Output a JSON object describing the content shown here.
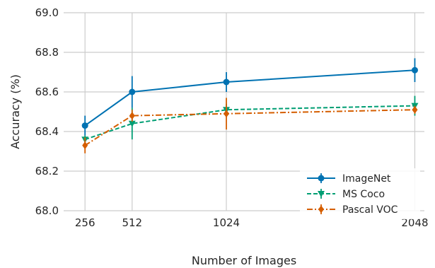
{
  "chart_data": {
    "type": "line",
    "title": "",
    "xlabel": "Number of Images",
    "ylabel": "Accuracy (%)",
    "x": [
      256,
      512,
      1024,
      2048
    ],
    "xticks": [
      "256",
      "512",
      "1024",
      "2048"
    ],
    "xlim": [
      140,
      2100
    ],
    "ylim": [
      68.0,
      69.0
    ],
    "yticks": [
      "68.0",
      "68.2",
      "68.4",
      "68.6",
      "68.8",
      "69.0"
    ],
    "grid": true,
    "legend_position": "lower-right",
    "series": [
      {
        "name": "ImageNet",
        "color": "#0072b2",
        "linestyle": "solid",
        "marker": "circle",
        "values": [
          68.43,
          68.6,
          68.65,
          68.71
        ],
        "errors": [
          0.05,
          0.08,
          0.05,
          0.06
        ]
      },
      {
        "name": "MS Coco",
        "color": "#009e73",
        "linestyle": "dashed",
        "marker": "triangle-down",
        "values": [
          68.36,
          68.44,
          68.51,
          68.53
        ],
        "errors": [
          0.02,
          0.08,
          0.03,
          0.05
        ]
      },
      {
        "name": "Pascal VOC",
        "color": "#d55e00",
        "linestyle": "dashdot",
        "marker": "diamond",
        "values": [
          68.33,
          68.48,
          68.49,
          68.51
        ],
        "errors": [
          0.04,
          0.03,
          0.08,
          0.02
        ]
      }
    ]
  }
}
